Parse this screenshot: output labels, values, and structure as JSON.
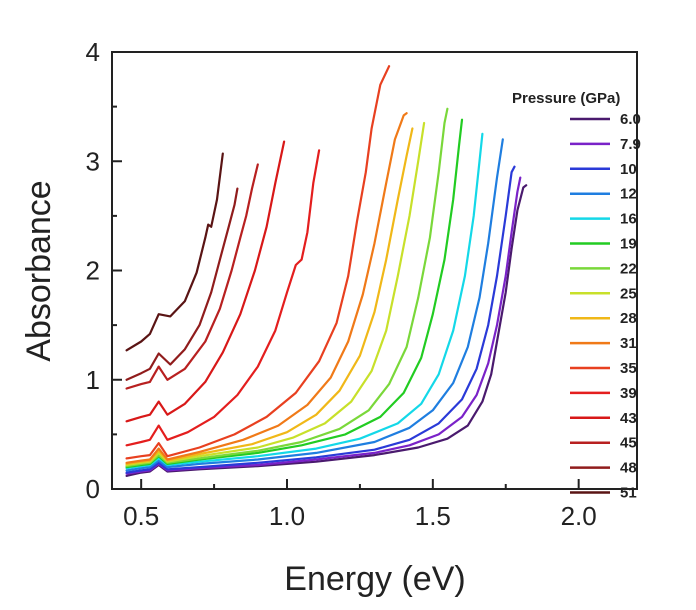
{
  "chart_data": {
    "type": "line",
    "title": "",
    "xlabel": "Energy (eV)",
    "ylabel": "Absorbance",
    "xlim": [
      0.4,
      2.2
    ],
    "ylim": [
      0,
      4
    ],
    "xticks": [
      0.5,
      1.0,
      1.5,
      2.0
    ],
    "xtick_labels": [
      "0.5",
      "1.0",
      "1.5",
      "2.0"
    ],
    "yticks": [
      0,
      1,
      2,
      3,
      4
    ],
    "ytick_labels": [
      "0",
      "1",
      "2",
      "3",
      "4"
    ],
    "legend_title": "Pressure (GPa)",
    "legend_position": "top-right",
    "grid": false,
    "series": [
      {
        "name": "6.0",
        "color": "#4a1a6e",
        "points": [
          [
            0.45,
            0.12
          ],
          [
            0.5,
            0.15
          ],
          [
            0.53,
            0.16
          ],
          [
            0.56,
            0.22
          ],
          [
            0.59,
            0.16
          ],
          [
            0.7,
            0.18
          ],
          [
            0.9,
            0.21
          ],
          [
            1.1,
            0.25
          ],
          [
            1.3,
            0.31
          ],
          [
            1.45,
            0.38
          ],
          [
            1.55,
            0.46
          ],
          [
            1.62,
            0.58
          ],
          [
            1.67,
            0.8
          ],
          [
            1.7,
            1.05
          ],
          [
            1.72,
            1.35
          ],
          [
            1.75,
            1.8
          ],
          [
            1.77,
            2.2
          ],
          [
            1.79,
            2.55
          ],
          [
            1.81,
            2.76
          ],
          [
            1.82,
            2.78
          ]
        ]
      },
      {
        "name": "7.9",
        "color": "#7a22c8",
        "points": [
          [
            0.45,
            0.14
          ],
          [
            0.5,
            0.16
          ],
          [
            0.53,
            0.17
          ],
          [
            0.56,
            0.23
          ],
          [
            0.59,
            0.17
          ],
          [
            0.7,
            0.19
          ],
          [
            0.9,
            0.22
          ],
          [
            1.1,
            0.27
          ],
          [
            1.3,
            0.33
          ],
          [
            1.42,
            0.4
          ],
          [
            1.52,
            0.5
          ],
          [
            1.6,
            0.66
          ],
          [
            1.65,
            0.86
          ],
          [
            1.69,
            1.15
          ],
          [
            1.72,
            1.5
          ],
          [
            1.75,
            1.95
          ],
          [
            1.77,
            2.35
          ],
          [
            1.79,
            2.72
          ],
          [
            1.8,
            2.85
          ]
        ]
      },
      {
        "name": "10",
        "color": "#2a3ad8",
        "points": [
          [
            0.45,
            0.15
          ],
          [
            0.5,
            0.17
          ],
          [
            0.53,
            0.18
          ],
          [
            0.56,
            0.24
          ],
          [
            0.59,
            0.18
          ],
          [
            0.7,
            0.2
          ],
          [
            0.9,
            0.24
          ],
          [
            1.1,
            0.29
          ],
          [
            1.3,
            0.36
          ],
          [
            1.42,
            0.45
          ],
          [
            1.52,
            0.6
          ],
          [
            1.6,
            0.82
          ],
          [
            1.65,
            1.1
          ],
          [
            1.69,
            1.5
          ],
          [
            1.72,
            1.95
          ],
          [
            1.75,
            2.5
          ],
          [
            1.77,
            2.9
          ],
          [
            1.78,
            2.95
          ]
        ]
      },
      {
        "name": "12",
        "color": "#1f7ee0",
        "points": [
          [
            0.45,
            0.17
          ],
          [
            0.5,
            0.19
          ],
          [
            0.53,
            0.2
          ],
          [
            0.56,
            0.26
          ],
          [
            0.59,
            0.2
          ],
          [
            0.7,
            0.23
          ],
          [
            0.9,
            0.27
          ],
          [
            1.1,
            0.33
          ],
          [
            1.3,
            0.43
          ],
          [
            1.42,
            0.56
          ],
          [
            1.5,
            0.72
          ],
          [
            1.57,
            0.97
          ],
          [
            1.62,
            1.3
          ],
          [
            1.66,
            1.75
          ],
          [
            1.69,
            2.25
          ],
          [
            1.72,
            2.85
          ],
          [
            1.74,
            3.2
          ]
        ]
      },
      {
        "name": "16",
        "color": "#14d8e8",
        "points": [
          [
            0.45,
            0.19
          ],
          [
            0.5,
            0.21
          ],
          [
            0.53,
            0.22
          ],
          [
            0.56,
            0.28
          ],
          [
            0.59,
            0.22
          ],
          [
            0.7,
            0.25
          ],
          [
            0.9,
            0.3
          ],
          [
            1.1,
            0.37
          ],
          [
            1.25,
            0.46
          ],
          [
            1.38,
            0.6
          ],
          [
            1.46,
            0.78
          ],
          [
            1.52,
            1.05
          ],
          [
            1.57,
            1.45
          ],
          [
            1.61,
            1.95
          ],
          [
            1.64,
            2.5
          ],
          [
            1.66,
            3.0
          ],
          [
            1.67,
            3.25
          ]
        ]
      },
      {
        "name": "19",
        "color": "#22cc22",
        "points": [
          [
            0.45,
            0.2
          ],
          [
            0.5,
            0.22
          ],
          [
            0.53,
            0.23
          ],
          [
            0.56,
            0.3
          ],
          [
            0.59,
            0.23
          ],
          [
            0.7,
            0.27
          ],
          [
            0.9,
            0.33
          ],
          [
            1.05,
            0.4
          ],
          [
            1.2,
            0.5
          ],
          [
            1.32,
            0.66
          ],
          [
            1.4,
            0.88
          ],
          [
            1.46,
            1.2
          ],
          [
            1.5,
            1.6
          ],
          [
            1.54,
            2.1
          ],
          [
            1.57,
            2.65
          ],
          [
            1.59,
            3.15
          ],
          [
            1.6,
            3.38
          ]
        ]
      },
      {
        "name": "22",
        "color": "#7ad83a",
        "points": [
          [
            0.45,
            0.21
          ],
          [
            0.5,
            0.23
          ],
          [
            0.53,
            0.24
          ],
          [
            0.56,
            0.31
          ],
          [
            0.59,
            0.24
          ],
          [
            0.7,
            0.28
          ],
          [
            0.9,
            0.35
          ],
          [
            1.05,
            0.43
          ],
          [
            1.18,
            0.55
          ],
          [
            1.28,
            0.72
          ],
          [
            1.35,
            0.96
          ],
          [
            1.41,
            1.3
          ],
          [
            1.45,
            1.75
          ],
          [
            1.49,
            2.3
          ],
          [
            1.52,
            2.9
          ],
          [
            1.54,
            3.35
          ],
          [
            1.55,
            3.48
          ]
        ]
      },
      {
        "name": "25",
        "color": "#c8e02a",
        "points": [
          [
            0.45,
            0.22
          ],
          [
            0.5,
            0.24
          ],
          [
            0.53,
            0.25
          ],
          [
            0.56,
            0.33
          ],
          [
            0.59,
            0.25
          ],
          [
            0.7,
            0.3
          ],
          [
            0.9,
            0.38
          ],
          [
            1.02,
            0.47
          ],
          [
            1.13,
            0.6
          ],
          [
            1.22,
            0.8
          ],
          [
            1.29,
            1.08
          ],
          [
            1.34,
            1.45
          ],
          [
            1.38,
            1.95
          ],
          [
            1.42,
            2.5
          ],
          [
            1.45,
            3.0
          ],
          [
            1.47,
            3.35
          ]
        ]
      },
      {
        "name": "28",
        "color": "#f0b818",
        "points": [
          [
            0.45,
            0.23
          ],
          [
            0.5,
            0.25
          ],
          [
            0.53,
            0.26
          ],
          [
            0.56,
            0.35
          ],
          [
            0.59,
            0.26
          ],
          [
            0.7,
            0.32
          ],
          [
            0.88,
            0.41
          ],
          [
            1.0,
            0.52
          ],
          [
            1.1,
            0.68
          ],
          [
            1.18,
            0.9
          ],
          [
            1.25,
            1.22
          ],
          [
            1.3,
            1.62
          ],
          [
            1.34,
            2.1
          ],
          [
            1.38,
            2.65
          ],
          [
            1.41,
            3.05
          ],
          [
            1.43,
            3.3
          ]
        ]
      },
      {
        "name": "31",
        "color": "#f07a18",
        "points": [
          [
            0.45,
            0.24
          ],
          [
            0.5,
            0.26
          ],
          [
            0.53,
            0.27
          ],
          [
            0.56,
            0.37
          ],
          [
            0.59,
            0.27
          ],
          [
            0.7,
            0.34
          ],
          [
            0.85,
            0.45
          ],
          [
            0.97,
            0.58
          ],
          [
            1.07,
            0.77
          ],
          [
            1.15,
            1.02
          ],
          [
            1.21,
            1.35
          ],
          [
            1.26,
            1.78
          ],
          [
            1.3,
            2.25
          ],
          [
            1.34,
            2.8
          ],
          [
            1.37,
            3.2
          ],
          [
            1.4,
            3.42
          ],
          [
            1.41,
            3.44
          ]
        ]
      },
      {
        "name": "35",
        "color": "#e84020",
        "points": [
          [
            0.45,
            0.28
          ],
          [
            0.5,
            0.3
          ],
          [
            0.53,
            0.31
          ],
          [
            0.56,
            0.42
          ],
          [
            0.59,
            0.3
          ],
          [
            0.7,
            0.38
          ],
          [
            0.82,
            0.5
          ],
          [
            0.93,
            0.66
          ],
          [
            1.03,
            0.88
          ],
          [
            1.11,
            1.17
          ],
          [
            1.17,
            1.52
          ],
          [
            1.21,
            1.95
          ],
          [
            1.24,
            2.45
          ],
          [
            1.27,
            2.9
          ],
          [
            1.29,
            3.3
          ],
          [
            1.32,
            3.7
          ],
          [
            1.35,
            3.87
          ]
        ]
      },
      {
        "name": "39",
        "color": "#e41e1e",
        "points": [
          [
            0.45,
            0.4
          ],
          [
            0.5,
            0.43
          ],
          [
            0.53,
            0.45
          ],
          [
            0.56,
            0.58
          ],
          [
            0.59,
            0.45
          ],
          [
            0.66,
            0.52
          ],
          [
            0.75,
            0.66
          ],
          [
            0.83,
            0.86
          ],
          [
            0.9,
            1.12
          ],
          [
            0.96,
            1.45
          ],
          [
            1.0,
            1.8
          ],
          [
            1.03,
            2.05
          ],
          [
            1.05,
            2.1
          ],
          [
            1.07,
            2.35
          ],
          [
            1.09,
            2.8
          ],
          [
            1.11,
            3.1
          ]
        ]
      },
      {
        "name": "43",
        "color": "#d81818",
        "points": [
          [
            0.45,
            0.62
          ],
          [
            0.5,
            0.66
          ],
          [
            0.53,
            0.68
          ],
          [
            0.56,
            0.8
          ],
          [
            0.59,
            0.68
          ],
          [
            0.65,
            0.78
          ],
          [
            0.72,
            0.98
          ],
          [
            0.78,
            1.25
          ],
          [
            0.84,
            1.6
          ],
          [
            0.89,
            2.0
          ],
          [
            0.93,
            2.4
          ],
          [
            0.96,
            2.8
          ],
          [
            0.99,
            3.18
          ]
        ]
      },
      {
        "name": "45",
        "color": "#b82020",
        "points": [
          [
            0.45,
            0.92
          ],
          [
            0.5,
            0.96
          ],
          [
            0.53,
            0.98
          ],
          [
            0.56,
            1.12
          ],
          [
            0.59,
            1.0
          ],
          [
            0.65,
            1.1
          ],
          [
            0.72,
            1.35
          ],
          [
            0.77,
            1.65
          ],
          [
            0.81,
            2.0
          ],
          [
            0.84,
            2.3
          ],
          [
            0.86,
            2.5
          ],
          [
            0.88,
            2.75
          ],
          [
            0.9,
            2.97
          ]
        ]
      },
      {
        "name": "48",
        "color": "#901c1c",
        "points": [
          [
            0.45,
            1.0
          ],
          [
            0.5,
            1.06
          ],
          [
            0.53,
            1.1
          ],
          [
            0.56,
            1.24
          ],
          [
            0.6,
            1.14
          ],
          [
            0.65,
            1.28
          ],
          [
            0.7,
            1.5
          ],
          [
            0.74,
            1.8
          ],
          [
            0.77,
            2.1
          ],
          [
            0.8,
            2.4
          ],
          [
            0.82,
            2.6
          ],
          [
            0.83,
            2.75
          ]
        ]
      },
      {
        "name": "51",
        "color": "#5a1414",
        "points": [
          [
            0.45,
            1.27
          ],
          [
            0.5,
            1.35
          ],
          [
            0.53,
            1.42
          ],
          [
            0.56,
            1.6
          ],
          [
            0.6,
            1.58
          ],
          [
            0.65,
            1.72
          ],
          [
            0.69,
            1.98
          ],
          [
            0.72,
            2.3
          ],
          [
            0.73,
            2.42
          ],
          [
            0.74,
            2.4
          ],
          [
            0.76,
            2.65
          ],
          [
            0.78,
            3.07
          ]
        ]
      }
    ]
  }
}
